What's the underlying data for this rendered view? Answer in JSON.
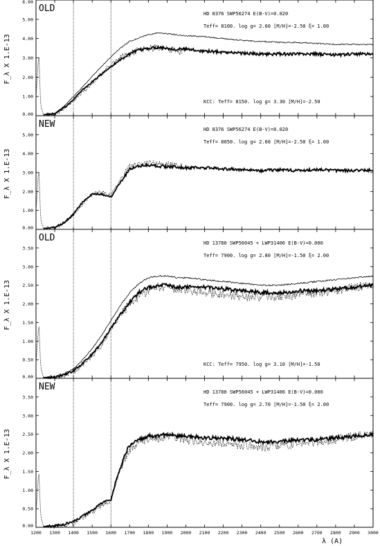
{
  "chart_data": {
    "type": "line",
    "x_range": [
      1200,
      3000
    ],
    "xlabel": "λ (A)",
    "x_ticks": [
      "1200",
      "1300",
      "1400",
      "1500",
      "1600",
      "1700",
      "1800",
      "1900",
      "2000",
      "2100",
      "2200",
      "2300",
      "2400",
      "2500",
      "2600",
      "2700",
      "2800",
      "2900",
      "3000"
    ],
    "vertical_lines_at": [
      1400,
      1600
    ],
    "line_styles": [
      "solid thick",
      "solid thin",
      "dotted"
    ],
    "panels": [
      {
        "tag": "OLD",
        "ylabel": "F_λ X   1.E-13",
        "ylim": [
          0,
          6.0
        ],
        "y_ticks": [
          "0.00",
          "1.00",
          "2.00",
          "3.00",
          "4.00",
          "5.00",
          "6.00"
        ],
        "info_line1": "HD 8376  SWP56274         E(B-V)=0.020",
        "info_line2": "Teff=  8100.  log g= 2.60 [M/H]=-2.50  ξ= 1.00",
        "kcc_line": "KCC: Teff=  8150. log g= 3.30 [M/H]=-2.50",
        "series": [
          {
            "style": "solid thick",
            "x": [
              1240,
              1300,
              1350,
              1400,
              1450,
              1500,
              1550,
              1600,
              1650,
              1700,
              1750,
              1800,
              1850,
              1900,
              1950,
              2000,
              2100,
              2200,
              2300,
              2400,
              2500,
              2600,
              2700,
              2800,
              2900,
              3000
            ],
            "y": [
              0.05,
              0.1,
              0.4,
              0.85,
              1.35,
              1.75,
              2.15,
              2.55,
              2.9,
              3.2,
              3.4,
              3.5,
              3.55,
              3.5,
              3.45,
              3.45,
              3.35,
              3.3,
              3.25,
              3.2,
              3.2,
              3.2,
              3.2,
              3.15,
              3.2,
              3.2
            ]
          },
          {
            "style": "solid thin",
            "x": [
              1240,
              1300,
              1350,
              1400,
              1450,
              1500,
              1550,
              1600,
              1650,
              1700,
              1750,
              1800,
              1850,
              1900,
              1950,
              2000,
              2100,
              2200,
              2300,
              2400,
              2500,
              2600,
              2700,
              2800,
              2900,
              3000
            ],
            "y": [
              0.05,
              0.1,
              0.5,
              1.0,
              1.5,
              2.05,
              2.55,
              3.05,
              3.5,
              3.85,
              4.05,
              4.2,
              4.3,
              4.25,
              4.2,
              4.15,
              4.1,
              4.0,
              3.9,
              3.85,
              3.8,
              3.8,
              3.75,
              3.7,
              3.7,
              3.7
            ]
          },
          {
            "style": "dotted",
            "x": [
              1200,
              1215,
              1225,
              1240,
              1300,
              1350,
              1400,
              1450,
              1500,
              1550,
              1600,
              1650,
              1700,
              1750,
              1800,
              1850,
              1900,
              1950,
              1980
            ],
            "y": [
              1.0,
              3.3,
              0.5,
              0.05,
              0.05,
              0.4,
              0.8,
              1.25,
              1.65,
              2.2,
              2.65,
              3.0,
              3.25,
              3.45,
              3.5,
              3.55,
              3.45,
              3.4,
              3.3
            ]
          }
        ]
      },
      {
        "tag": "NEW",
        "ylabel": "F_λ X   1.E-13",
        "ylim": [
          0,
          6.0
        ],
        "y_ticks": [
          "0.00",
          "1.00",
          "2.00",
          "3.00",
          "4.00",
          "5.00"
        ],
        "info_line1": "HD 8376  SWP56274         E(B-V)=0.020",
        "info_line2": "Teff=  8050.  log g= 2.60 [M/H]=-2.50  ξ= 1.00",
        "kcc_line": "",
        "series": [
          {
            "style": "solid thick",
            "x": [
              1240,
              1300,
              1350,
              1400,
              1450,
              1500,
              1550,
              1600,
              1630,
              1680,
              1700,
              1750,
              1800,
              1850,
              1900,
              1950,
              2000,
              2100,
              2200,
              2300,
              2400,
              2500,
              2600,
              2700,
              2800,
              2900,
              3000
            ],
            "y": [
              0.05,
              0.1,
              0.35,
              0.8,
              1.45,
              1.85,
              1.85,
              1.7,
              2.2,
              2.9,
              3.2,
              3.35,
              3.4,
              3.35,
              3.3,
              3.3,
              3.25,
              3.25,
              3.2,
              3.15,
              3.1,
              3.15,
              3.1,
              3.15,
              3.1,
              3.1,
              3.15
            ]
          },
          {
            "style": "dotted",
            "x": [
              1200,
              1215,
              1225,
              1240,
              1300,
              1350,
              1400,
              1450,
              1500,
              1550,
              1600,
              1650,
              1700,
              1750,
              1800,
              1850,
              1900,
              1950,
              1980
            ],
            "y": [
              1.0,
              3.3,
              0.5,
              0.05,
              0.05,
              0.4,
              0.8,
              1.4,
              1.85,
              2.0,
              1.8,
              2.6,
              3.3,
              3.45,
              3.5,
              3.45,
              3.4,
              3.35,
              3.3
            ]
          }
        ]
      },
      {
        "tag": "OLD",
        "ylabel": "F_λ X   1.E-13",
        "ylim": [
          0,
          4.0
        ],
        "y_ticks": [
          "0.00",
          "0.50",
          "1.00",
          "1.50",
          "2.00",
          "2.50",
          "3.00",
          "3.50"
        ],
        "info_line1": "HD 13780 SWP56045 + LWP31406  E(B-V)=0.000",
        "info_line2": "Teff=  7900.  log g= 2.80 [M/H]=-1.50  ξ= 2.00",
        "kcc_line": "KCC: Teff=  7950. log g= 3.10 [M/H]=-1.50",
        "series": [
          {
            "style": "solid thick",
            "x": [
              1240,
              1300,
              1350,
              1400,
              1450,
              1500,
              1550,
              1600,
              1650,
              1700,
              1750,
              1800,
              1850,
              1900,
              1950,
              2000,
              2100,
              2200,
              2300,
              2400,
              2500,
              2600,
              2700,
              2800,
              2900,
              3000
            ],
            "y": [
              0.02,
              0.03,
              0.1,
              0.2,
              0.4,
              0.65,
              0.95,
              1.35,
              1.7,
              2.05,
              2.3,
              2.45,
              2.5,
              2.5,
              2.45,
              2.45,
              2.45,
              2.4,
              2.35,
              2.3,
              2.3,
              2.35,
              2.35,
              2.4,
              2.45,
              2.5
            ]
          },
          {
            "style": "solid thin",
            "x": [
              1240,
              1300,
              1350,
              1400,
              1450,
              1500,
              1550,
              1600,
              1650,
              1700,
              1750,
              1800,
              1850,
              1900,
              1950,
              2000,
              2100,
              2200,
              2300,
              2400,
              2500,
              2600,
              2700,
              2800,
              2900,
              3000
            ],
            "y": [
              0.02,
              0.03,
              0.12,
              0.25,
              0.5,
              0.8,
              1.15,
              1.55,
              1.95,
              2.3,
              2.55,
              2.7,
              2.75,
              2.75,
              2.7,
              2.7,
              2.65,
              2.6,
              2.55,
              2.5,
              2.5,
              2.55,
              2.6,
              2.65,
              2.7,
              2.75
            ]
          },
          {
            "style": "dotted",
            "x": [
              1200,
              1215,
              1225,
              1240,
              1300,
              1350,
              1400,
              1450,
              1500,
              1550,
              1600,
              1650,
              1700,
              1750,
              1800,
              1850,
              1900,
              1950,
              2000,
              2100,
              2200,
              2300,
              2400,
              2500,
              2600,
              2700,
              2800,
              2900,
              3000
            ],
            "y": [
              0.4,
              1.5,
              0.3,
              0.02,
              0.02,
              0.08,
              0.18,
              0.35,
              0.6,
              0.9,
              1.3,
              1.7,
              2.0,
              2.2,
              2.35,
              2.45,
              2.45,
              2.4,
              2.35,
              2.3,
              2.25,
              2.2,
              2.15,
              2.2,
              2.25,
              2.3,
              2.35,
              2.45,
              2.5
            ]
          }
        ]
      },
      {
        "tag": "NEW",
        "ylabel": "F_λ X   1.E-13",
        "ylim": [
          0,
          4.0
        ],
        "y_ticks": [
          "0.00",
          "0.50",
          "1.00",
          "1.50",
          "2.00",
          "2.50",
          "3.00",
          "3.50"
        ],
        "info_line1": "HD 13780 SWP56045 + LWP31406  E(B-V)=0.000",
        "info_line2": "Teff=  7900.  log g= 2.70 [M/H]=-1.50  ξ= 2.00",
        "kcc_line": "",
        "series": [
          {
            "style": "solid thick",
            "x": [
              1240,
              1300,
              1350,
              1400,
              1450,
              1500,
              1550,
              1600,
              1630,
              1680,
              1700,
              1750,
              1800,
              1850,
              1900,
              1950,
              2000,
              2100,
              2200,
              2300,
              2400,
              2500,
              2600,
              2700,
              2800,
              2900,
              3000
            ],
            "y": [
              0.02,
              0.03,
              0.08,
              0.15,
              0.3,
              0.45,
              0.65,
              0.75,
              1.3,
              2.0,
              2.2,
              2.35,
              2.45,
              2.45,
              2.5,
              2.45,
              2.45,
              2.4,
              2.4,
              2.35,
              2.3,
              2.3,
              2.35,
              2.35,
              2.4,
              2.45,
              2.5
            ]
          },
          {
            "style": "dotted",
            "x": [
              1200,
              1215,
              1225,
              1240,
              1300,
              1350,
              1400,
              1450,
              1500,
              1550,
              1600,
              1650,
              1700,
              1750,
              1800,
              1850,
              1900,
              1950,
              2000,
              2100,
              2200,
              2300,
              2400,
              2500,
              2600,
              2700,
              2800,
              2900,
              3000
            ],
            "y": [
              0.4,
              1.55,
              0.3,
              0.02,
              0.02,
              0.05,
              0.12,
              0.28,
              0.42,
              0.6,
              0.7,
              1.6,
              2.1,
              2.3,
              2.4,
              2.4,
              2.45,
              2.4,
              2.35,
              2.3,
              2.25,
              2.2,
              2.15,
              2.2,
              2.25,
              2.3,
              2.35,
              2.45,
              2.5
            ]
          }
        ]
      }
    ]
  }
}
